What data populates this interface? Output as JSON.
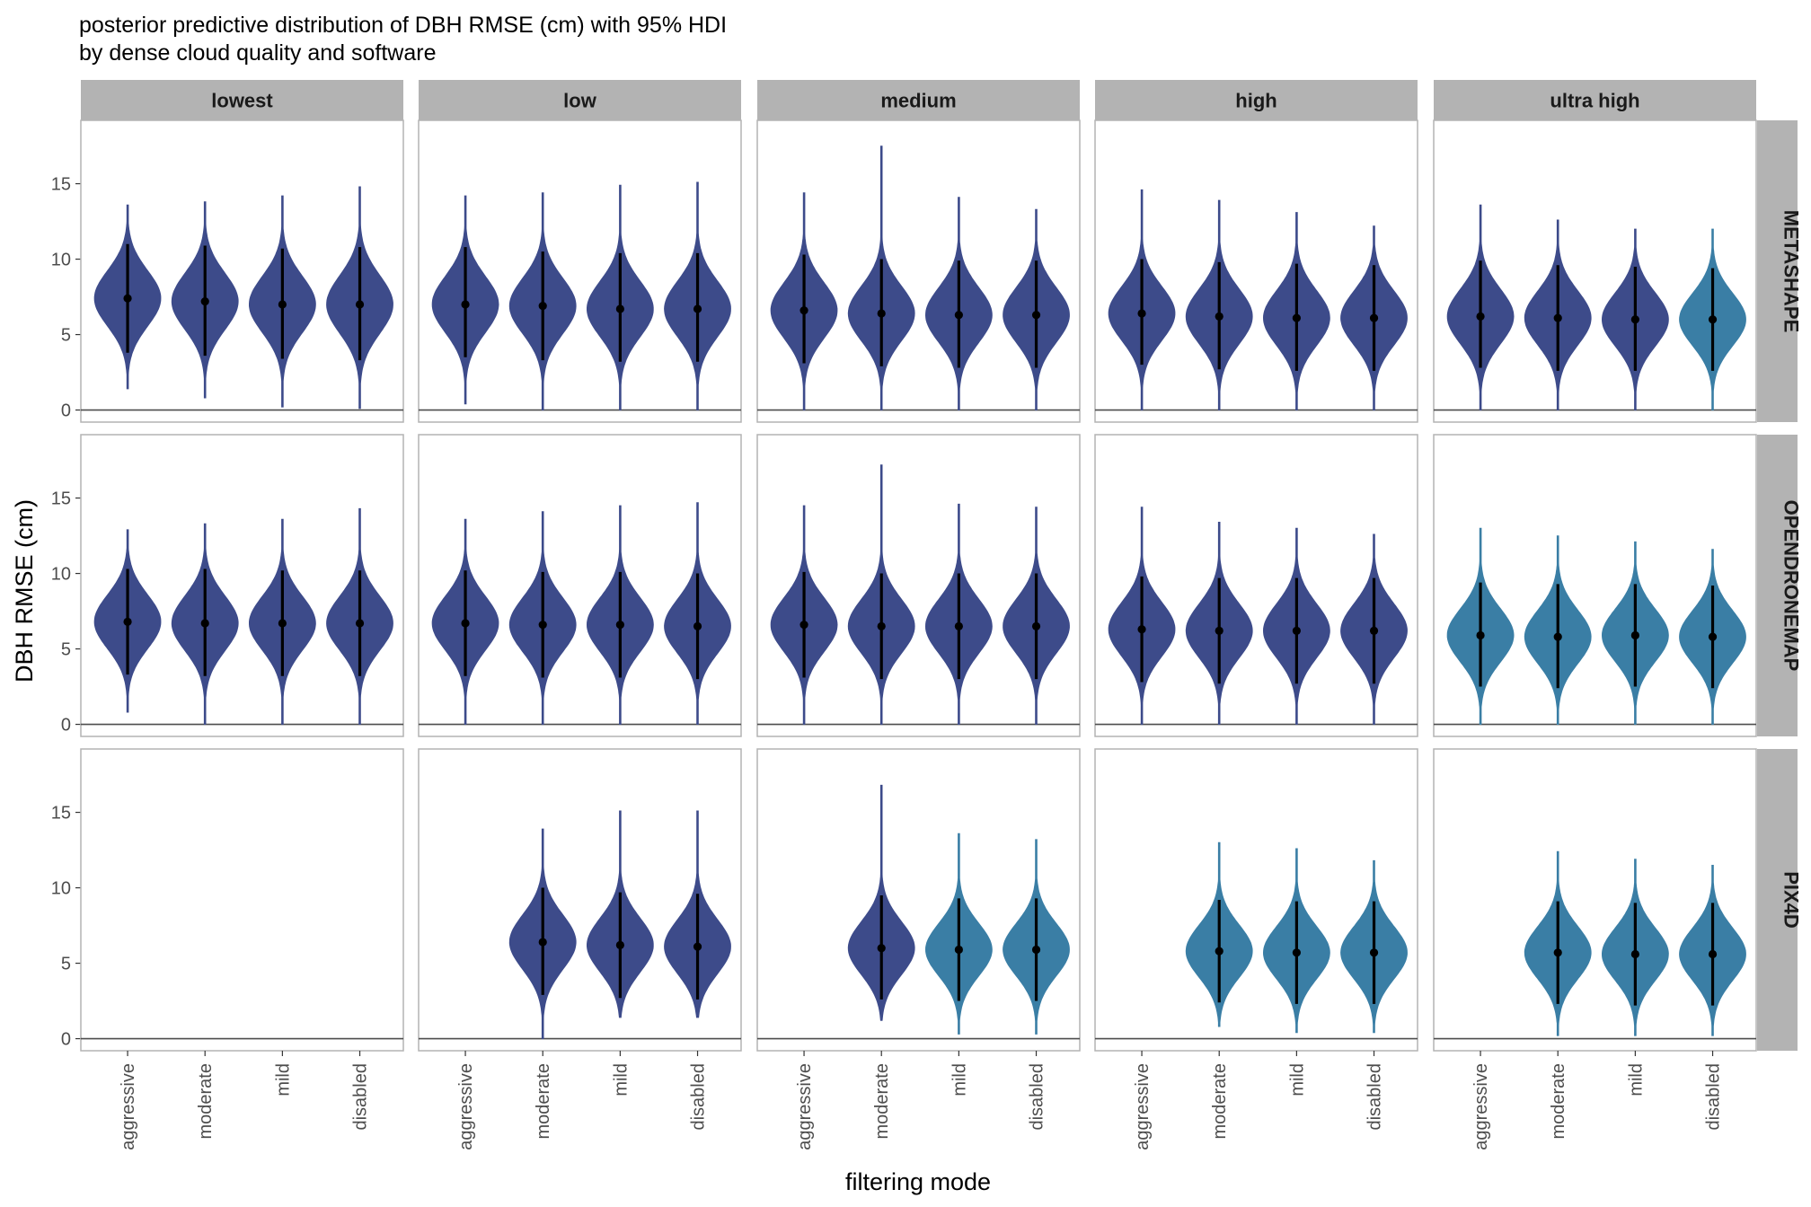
{
  "chart_data": {
    "type": "violin",
    "title": "posterior predictive distribution of DBH RMSE (cm) with 95% HDI",
    "subtitle": "by dense cloud quality and software",
    "xlabel": "filtering mode",
    "ylabel": "DBH RMSE (cm)",
    "ylim": [
      -0.8,
      19.2
    ],
    "yticks": [
      0,
      5,
      10,
      15
    ],
    "columns": [
      "lowest",
      "low",
      "medium",
      "high",
      "ultra high"
    ],
    "rows": [
      "METASHAPE",
      "OPENDRONEMAP",
      "PIX4D"
    ],
    "categories": [
      "aggressive",
      "moderate",
      "mild",
      "disabled"
    ],
    "colors": {
      "dark": "#3d4b8a",
      "light": "#3a7ea5",
      "strip": "#b3b3b3",
      "panel_border": "#b3b3b3",
      "hline": "#4d4d4d",
      "point": "#000000"
    },
    "hline": 0,
    "series": [
      {
        "software": "METASHAPE",
        "quality": "lowest",
        "filter": "aggressive",
        "median": 7.4,
        "min": 1.4,
        "max": 13.6,
        "hdi": [
          3.8,
          11.0
        ],
        "fill": "dark"
      },
      {
        "software": "METASHAPE",
        "quality": "lowest",
        "filter": "moderate",
        "median": 7.2,
        "min": 0.8,
        "max": 13.8,
        "hdi": [
          3.6,
          10.9
        ],
        "fill": "dark"
      },
      {
        "software": "METASHAPE",
        "quality": "lowest",
        "filter": "mild",
        "median": 7.0,
        "min": 0.2,
        "max": 14.2,
        "hdi": [
          3.4,
          10.7
        ],
        "fill": "dark"
      },
      {
        "software": "METASHAPE",
        "quality": "lowest",
        "filter": "disabled",
        "median": 7.0,
        "min": 0.1,
        "max": 14.8,
        "hdi": [
          3.3,
          10.8
        ],
        "fill": "dark"
      },
      {
        "software": "METASHAPE",
        "quality": "low",
        "filter": "aggressive",
        "median": 7.0,
        "min": 0.4,
        "max": 14.2,
        "hdi": [
          3.5,
          10.8
        ],
        "fill": "dark"
      },
      {
        "software": "METASHAPE",
        "quality": "low",
        "filter": "moderate",
        "median": 6.9,
        "min": 0.0,
        "max": 14.4,
        "hdi": [
          3.3,
          10.5
        ],
        "fill": "dark"
      },
      {
        "software": "METASHAPE",
        "quality": "low",
        "filter": "mild",
        "median": 6.7,
        "min": 0.0,
        "max": 14.9,
        "hdi": [
          3.2,
          10.4
        ],
        "fill": "dark"
      },
      {
        "software": "METASHAPE",
        "quality": "low",
        "filter": "disabled",
        "median": 6.7,
        "min": 0.0,
        "max": 15.1,
        "hdi": [
          3.2,
          10.4
        ],
        "fill": "dark"
      },
      {
        "software": "METASHAPE",
        "quality": "medium",
        "filter": "aggressive",
        "median": 6.6,
        "min": 0.0,
        "max": 14.4,
        "hdi": [
          3.1,
          10.3
        ],
        "fill": "dark"
      },
      {
        "software": "METASHAPE",
        "quality": "medium",
        "filter": "moderate",
        "median": 6.4,
        "min": 0.0,
        "max": 17.5,
        "hdi": [
          2.9,
          10.0
        ],
        "fill": "dark"
      },
      {
        "software": "METASHAPE",
        "quality": "medium",
        "filter": "mild",
        "median": 6.3,
        "min": 0.0,
        "max": 14.1,
        "hdi": [
          2.8,
          9.9
        ],
        "fill": "dark"
      },
      {
        "software": "METASHAPE",
        "quality": "medium",
        "filter": "disabled",
        "median": 6.3,
        "min": 0.0,
        "max": 13.3,
        "hdi": [
          2.8,
          9.9
        ],
        "fill": "dark"
      },
      {
        "software": "METASHAPE",
        "quality": "high",
        "filter": "aggressive",
        "median": 6.4,
        "min": 0.0,
        "max": 14.6,
        "hdi": [
          3.0,
          10.0
        ],
        "fill": "dark"
      },
      {
        "software": "METASHAPE",
        "quality": "high",
        "filter": "moderate",
        "median": 6.2,
        "min": 0.0,
        "max": 13.9,
        "hdi": [
          2.7,
          9.8
        ],
        "fill": "dark"
      },
      {
        "software": "METASHAPE",
        "quality": "high",
        "filter": "mild",
        "median": 6.1,
        "min": 0.0,
        "max": 13.1,
        "hdi": [
          2.6,
          9.7
        ],
        "fill": "dark"
      },
      {
        "software": "METASHAPE",
        "quality": "high",
        "filter": "disabled",
        "median": 6.1,
        "min": 0.0,
        "max": 12.2,
        "hdi": [
          2.6,
          9.6
        ],
        "fill": "dark"
      },
      {
        "software": "METASHAPE",
        "quality": "ultra high",
        "filter": "aggressive",
        "median": 6.2,
        "min": 0.0,
        "max": 13.6,
        "hdi": [
          2.8,
          9.9
        ],
        "fill": "dark"
      },
      {
        "software": "METASHAPE",
        "quality": "ultra high",
        "filter": "moderate",
        "median": 6.1,
        "min": 0.0,
        "max": 12.6,
        "hdi": [
          2.6,
          9.6
        ],
        "fill": "dark"
      },
      {
        "software": "METASHAPE",
        "quality": "ultra high",
        "filter": "mild",
        "median": 6.0,
        "min": 0.0,
        "max": 12.0,
        "hdi": [
          2.6,
          9.5
        ],
        "fill": "dark"
      },
      {
        "software": "METASHAPE",
        "quality": "ultra high",
        "filter": "disabled",
        "median": 6.0,
        "min": 0.0,
        "max": 12.0,
        "hdi": [
          2.6,
          9.4
        ],
        "fill": "light"
      },
      {
        "software": "OPENDRONEMAP",
        "quality": "lowest",
        "filter": "aggressive",
        "median": 6.8,
        "min": 0.8,
        "max": 12.9,
        "hdi": [
          3.3,
          10.3
        ],
        "fill": "dark"
      },
      {
        "software": "OPENDRONEMAP",
        "quality": "lowest",
        "filter": "moderate",
        "median": 6.7,
        "min": 0.0,
        "max": 13.3,
        "hdi": [
          3.2,
          10.3
        ],
        "fill": "dark"
      },
      {
        "software": "OPENDRONEMAP",
        "quality": "lowest",
        "filter": "mild",
        "median": 6.7,
        "min": 0.0,
        "max": 13.6,
        "hdi": [
          3.2,
          10.2
        ],
        "fill": "dark"
      },
      {
        "software": "OPENDRONEMAP",
        "quality": "lowest",
        "filter": "disabled",
        "median": 6.7,
        "min": 0.0,
        "max": 14.3,
        "hdi": [
          3.2,
          10.2
        ],
        "fill": "dark"
      },
      {
        "software": "OPENDRONEMAP",
        "quality": "low",
        "filter": "aggressive",
        "median": 6.7,
        "min": 0.0,
        "max": 13.6,
        "hdi": [
          3.2,
          10.2
        ],
        "fill": "dark"
      },
      {
        "software": "OPENDRONEMAP",
        "quality": "low",
        "filter": "moderate",
        "median": 6.6,
        "min": 0.0,
        "max": 14.1,
        "hdi": [
          3.1,
          10.1
        ],
        "fill": "dark"
      },
      {
        "software": "OPENDRONEMAP",
        "quality": "low",
        "filter": "mild",
        "median": 6.6,
        "min": 0.0,
        "max": 14.5,
        "hdi": [
          3.1,
          10.1
        ],
        "fill": "dark"
      },
      {
        "software": "OPENDRONEMAP",
        "quality": "low",
        "filter": "disabled",
        "median": 6.5,
        "min": 0.0,
        "max": 14.7,
        "hdi": [
          3.0,
          10.0
        ],
        "fill": "dark"
      },
      {
        "software": "OPENDRONEMAP",
        "quality": "medium",
        "filter": "aggressive",
        "median": 6.6,
        "min": 0.0,
        "max": 14.5,
        "hdi": [
          3.1,
          10.1
        ],
        "fill": "dark"
      },
      {
        "software": "OPENDRONEMAP",
        "quality": "medium",
        "filter": "moderate",
        "median": 6.5,
        "min": 0.0,
        "max": 17.2,
        "hdi": [
          3.0,
          10.0
        ],
        "fill": "dark"
      },
      {
        "software": "OPENDRONEMAP",
        "quality": "medium",
        "filter": "mild",
        "median": 6.5,
        "min": 0.0,
        "max": 14.6,
        "hdi": [
          3.0,
          10.0
        ],
        "fill": "dark"
      },
      {
        "software": "OPENDRONEMAP",
        "quality": "medium",
        "filter": "disabled",
        "median": 6.5,
        "min": 0.0,
        "max": 14.4,
        "hdi": [
          3.0,
          10.0
        ],
        "fill": "dark"
      },
      {
        "software": "OPENDRONEMAP",
        "quality": "high",
        "filter": "aggressive",
        "median": 6.3,
        "min": 0.0,
        "max": 14.4,
        "hdi": [
          2.8,
          9.8
        ],
        "fill": "dark"
      },
      {
        "software": "OPENDRONEMAP",
        "quality": "high",
        "filter": "moderate",
        "median": 6.2,
        "min": 0.0,
        "max": 13.4,
        "hdi": [
          2.7,
          9.7
        ],
        "fill": "dark"
      },
      {
        "software": "OPENDRONEMAP",
        "quality": "high",
        "filter": "mild",
        "median": 6.2,
        "min": 0.0,
        "max": 13.0,
        "hdi": [
          2.7,
          9.7
        ],
        "fill": "dark"
      },
      {
        "software": "OPENDRONEMAP",
        "quality": "high",
        "filter": "disabled",
        "median": 6.2,
        "min": 0.0,
        "max": 12.6,
        "hdi": [
          2.7,
          9.7
        ],
        "fill": "dark"
      },
      {
        "software": "OPENDRONEMAP",
        "quality": "ultra high",
        "filter": "aggressive",
        "median": 5.9,
        "min": 0.0,
        "max": 13.0,
        "hdi": [
          2.5,
          9.4
        ],
        "fill": "light"
      },
      {
        "software": "OPENDRONEMAP",
        "quality": "ultra high",
        "filter": "moderate",
        "median": 5.8,
        "min": 0.0,
        "max": 12.5,
        "hdi": [
          2.4,
          9.3
        ],
        "fill": "light"
      },
      {
        "software": "OPENDRONEMAP",
        "quality": "ultra high",
        "filter": "mild",
        "median": 5.9,
        "min": 0.0,
        "max": 12.1,
        "hdi": [
          2.5,
          9.3
        ],
        "fill": "light"
      },
      {
        "software": "OPENDRONEMAP",
        "quality": "ultra high",
        "filter": "disabled",
        "median": 5.8,
        "min": 0.0,
        "max": 11.6,
        "hdi": [
          2.4,
          9.2
        ],
        "fill": "light"
      },
      {
        "software": "PIX4D",
        "quality": "low",
        "filter": "moderate",
        "median": 6.4,
        "min": 0.0,
        "max": 13.9,
        "hdi": [
          2.9,
          10.0
        ],
        "fill": "dark"
      },
      {
        "software": "PIX4D",
        "quality": "low",
        "filter": "mild",
        "median": 6.2,
        "min": 1.4,
        "max": 15.1,
        "hdi": [
          2.7,
          9.7
        ],
        "fill": "dark"
      },
      {
        "software": "PIX4D",
        "quality": "low",
        "filter": "disabled",
        "median": 6.1,
        "min": 1.4,
        "max": 15.1,
        "hdi": [
          2.6,
          9.6
        ],
        "fill": "dark"
      },
      {
        "software": "PIX4D",
        "quality": "medium",
        "filter": "moderate",
        "median": 6.0,
        "min": 1.2,
        "max": 16.8,
        "hdi": [
          2.6,
          9.5
        ],
        "fill": "dark"
      },
      {
        "software": "PIX4D",
        "quality": "medium",
        "filter": "mild",
        "median": 5.9,
        "min": 0.3,
        "max": 13.6,
        "hdi": [
          2.5,
          9.3
        ],
        "fill": "light"
      },
      {
        "software": "PIX4D",
        "quality": "medium",
        "filter": "disabled",
        "median": 5.9,
        "min": 0.3,
        "max": 13.2,
        "hdi": [
          2.5,
          9.3
        ],
        "fill": "light"
      },
      {
        "software": "PIX4D",
        "quality": "high",
        "filter": "moderate",
        "median": 5.8,
        "min": 0.8,
        "max": 13.0,
        "hdi": [
          2.4,
          9.2
        ],
        "fill": "light"
      },
      {
        "software": "PIX4D",
        "quality": "high",
        "filter": "mild",
        "median": 5.7,
        "min": 0.4,
        "max": 12.6,
        "hdi": [
          2.3,
          9.1
        ],
        "fill": "light"
      },
      {
        "software": "PIX4D",
        "quality": "high",
        "filter": "disabled",
        "median": 5.7,
        "min": 0.4,
        "max": 11.8,
        "hdi": [
          2.3,
          9.1
        ],
        "fill": "light"
      },
      {
        "software": "PIX4D",
        "quality": "ultra high",
        "filter": "moderate",
        "median": 5.7,
        "min": 0.2,
        "max": 12.4,
        "hdi": [
          2.3,
          9.1
        ],
        "fill": "light"
      },
      {
        "software": "PIX4D",
        "quality": "ultra high",
        "filter": "mild",
        "median": 5.6,
        "min": 0.2,
        "max": 11.9,
        "hdi": [
          2.2,
          9.0
        ],
        "fill": "light"
      },
      {
        "software": "PIX4D",
        "quality": "ultra high",
        "filter": "disabled",
        "median": 5.6,
        "min": 0.2,
        "max": 11.5,
        "hdi": [
          2.2,
          9.0
        ],
        "fill": "light"
      }
    ]
  }
}
